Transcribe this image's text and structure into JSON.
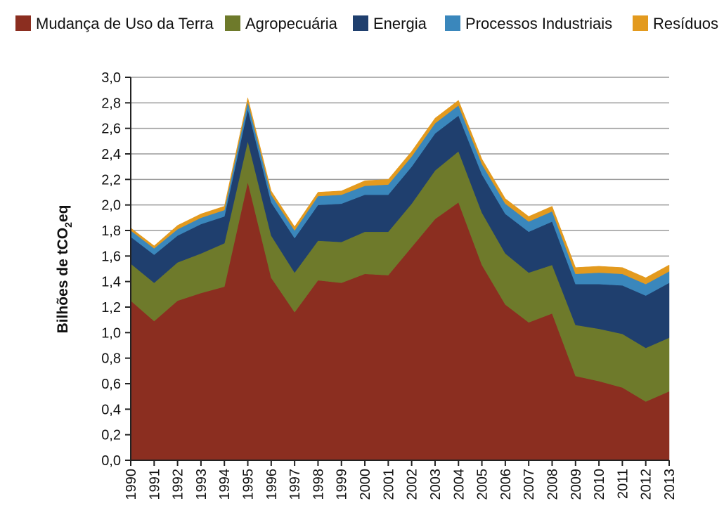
{
  "chart_data": {
    "type": "area",
    "stacked": true,
    "title": "",
    "xlabel": "",
    "ylabel": "Bilhões de tCO",
    "ylabel_sub": "2",
    "ylabel_suffix": "eq",
    "ylim": [
      0,
      3.0
    ],
    "yticks": [
      "0,0",
      "0,2",
      "0,4",
      "0,6",
      "0,8",
      "1,0",
      "1,2",
      "1,4",
      "1,6",
      "1,8",
      "2,0",
      "2,2",
      "2,4",
      "2,6",
      "2,8",
      "3,0"
    ],
    "grid": true,
    "legend_position": "top",
    "x": [
      1990,
      1991,
      1992,
      1993,
      1994,
      1995,
      1996,
      1997,
      1998,
      1999,
      2000,
      2001,
      2002,
      2003,
      2004,
      2005,
      2006,
      2007,
      2008,
      2009,
      2010,
      2011,
      2012,
      2013
    ],
    "xtick_labels": [
      "1990",
      "1991",
      "1992",
      "1993",
      "1994",
      "1995",
      "1996",
      "1997",
      "1998",
      "1999",
      "2000",
      "2001",
      "2002",
      "2003",
      "2004",
      "2005",
      "2006",
      "2007",
      "2008",
      "2009",
      "2010",
      "2011",
      "2012",
      "2013"
    ],
    "series": [
      {
        "name": "Mudança de Uso da Terra",
        "color": "#8B2E20",
        "values": [
          1.25,
          1.09,
          1.25,
          1.31,
          1.36,
          2.18,
          1.43,
          1.16,
          1.41,
          1.39,
          1.46,
          1.45,
          1.67,
          1.89,
          2.02,
          1.53,
          1.22,
          1.08,
          1.15,
          0.66,
          0.62,
          0.57,
          0.46,
          0.54
        ]
      },
      {
        "name": "Agropecuária",
        "color": "#6E7A2B",
        "values": [
          0.29,
          0.3,
          0.3,
          0.31,
          0.34,
          0.32,
          0.33,
          0.31,
          0.31,
          0.32,
          0.33,
          0.34,
          0.34,
          0.38,
          0.4,
          0.41,
          0.4,
          0.39,
          0.38,
          0.4,
          0.41,
          0.42,
          0.42,
          0.42
        ]
      },
      {
        "name": "Energia",
        "color": "#1F3F6E",
        "values": [
          0.21,
          0.22,
          0.21,
          0.23,
          0.21,
          0.25,
          0.26,
          0.27,
          0.28,
          0.3,
          0.29,
          0.29,
          0.29,
          0.29,
          0.28,
          0.3,
          0.31,
          0.32,
          0.34,
          0.32,
          0.35,
          0.38,
          0.41,
          0.43
        ]
      },
      {
        "name": "Processos Industriais",
        "color": "#3A87BC",
        "values": [
          0.05,
          0.05,
          0.05,
          0.05,
          0.05,
          0.06,
          0.06,
          0.06,
          0.07,
          0.07,
          0.07,
          0.08,
          0.08,
          0.08,
          0.08,
          0.08,
          0.08,
          0.08,
          0.08,
          0.08,
          0.09,
          0.09,
          0.09,
          0.09
        ]
      },
      {
        "name": "Resíduos",
        "color": "#E39A1E",
        "values": [
          0.02,
          0.02,
          0.03,
          0.03,
          0.03,
          0.03,
          0.03,
          0.03,
          0.03,
          0.03,
          0.04,
          0.04,
          0.04,
          0.04,
          0.04,
          0.04,
          0.04,
          0.04,
          0.04,
          0.05,
          0.05,
          0.05,
          0.05,
          0.05
        ]
      }
    ]
  }
}
